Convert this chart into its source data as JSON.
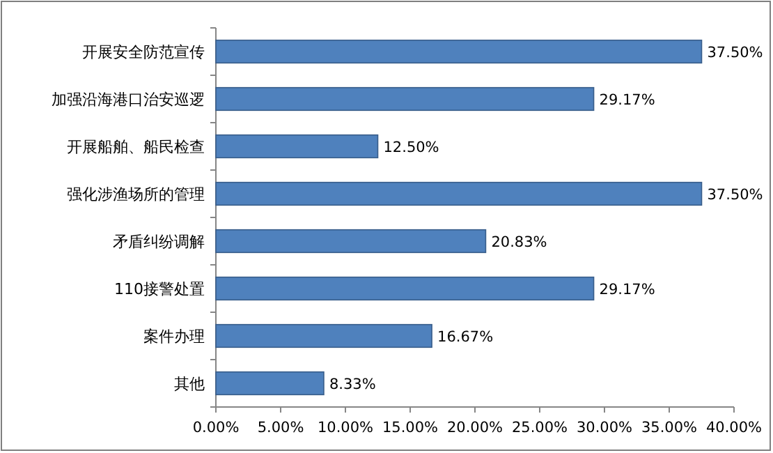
{
  "chart_data": {
    "type": "bar",
    "orientation": "horizontal",
    "categories": [
      "开展安全防范宣传",
      "加强沿海港口治安巡逻",
      "开展船舶、船民检查",
      "强化涉渔场所的管理",
      "矛盾纠纷调解",
      "110接警处置",
      "案件办理",
      "其他"
    ],
    "values": [
      37.5,
      29.17,
      12.5,
      37.5,
      20.83,
      29.17,
      16.67,
      8.33
    ],
    "value_labels": [
      "37.50%",
      "29.17%",
      "12.50%",
      "37.50%",
      "20.83%",
      "29.17%",
      "16.67%",
      "8.33%"
    ],
    "color": "#4f81bd",
    "xlim": [
      0,
      40
    ],
    "xticks": [
      {
        "value": 0,
        "label": "0.00%"
      },
      {
        "value": 5,
        "label": "5.00%"
      },
      {
        "value": 10,
        "label": "10.00%"
      },
      {
        "value": 15,
        "label": "15.00%"
      },
      {
        "value": 20,
        "label": "20.00%"
      },
      {
        "value": 25,
        "label": "25.00%"
      },
      {
        "value": 30,
        "label": "30.00%"
      },
      {
        "value": 35,
        "label": "35.00%"
      },
      {
        "value": 40,
        "label": "40.00%"
      }
    ]
  }
}
